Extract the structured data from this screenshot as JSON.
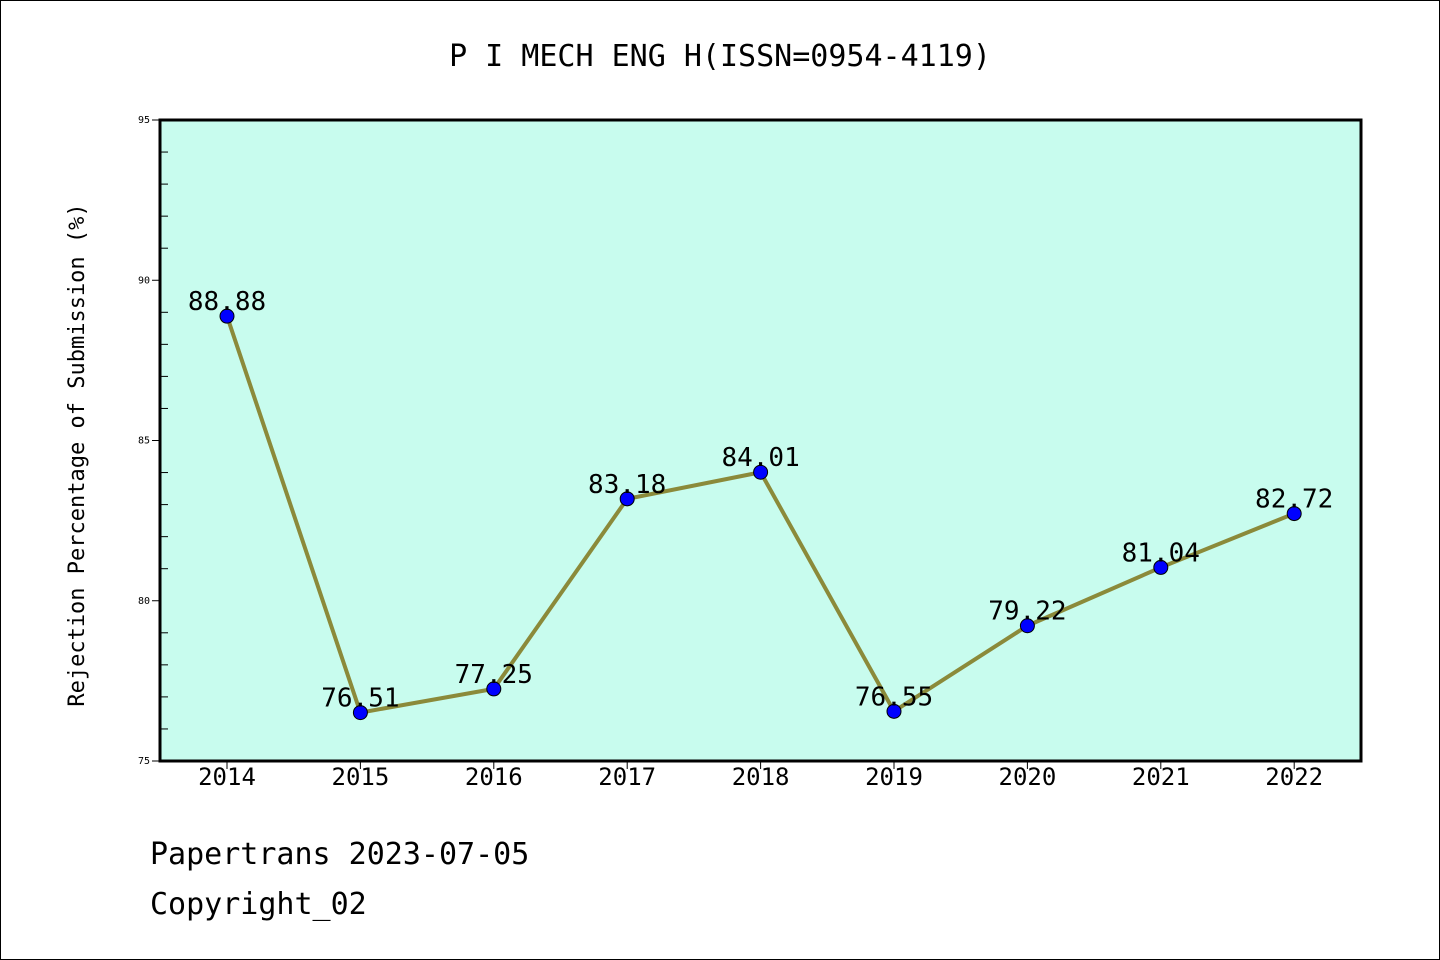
{
  "chart_data": {
    "type": "line",
    "title": "P I MECH ENG H(ISSN=0954-4119)",
    "ylabel": "Rejection Percentage of Submission (%)",
    "xlabel": "",
    "categories": [
      "2014",
      "2015",
      "2016",
      "2017",
      "2018",
      "2019",
      "2020",
      "2021",
      "2022"
    ],
    "values": [
      88.88,
      76.51,
      77.25,
      83.18,
      84.01,
      76.55,
      79.22,
      81.04,
      82.72
    ],
    "data_labels": [
      "88.88",
      "76.51",
      "77.25",
      "83.18",
      "84.01",
      "76.55",
      "79.22",
      "81.04",
      "82.72"
    ],
    "ylim": [
      75,
      95
    ],
    "yticks": [
      "75",
      "80",
      "85",
      "90",
      "95"
    ],
    "grid": false,
    "colors": {
      "plot_background": "#c8fcee",
      "line": "#8b8a3a",
      "marker": "#0000ff"
    }
  },
  "footer": {
    "line1": "Papertrans 2023-07-05",
    "line2": "Copyright_02"
  }
}
